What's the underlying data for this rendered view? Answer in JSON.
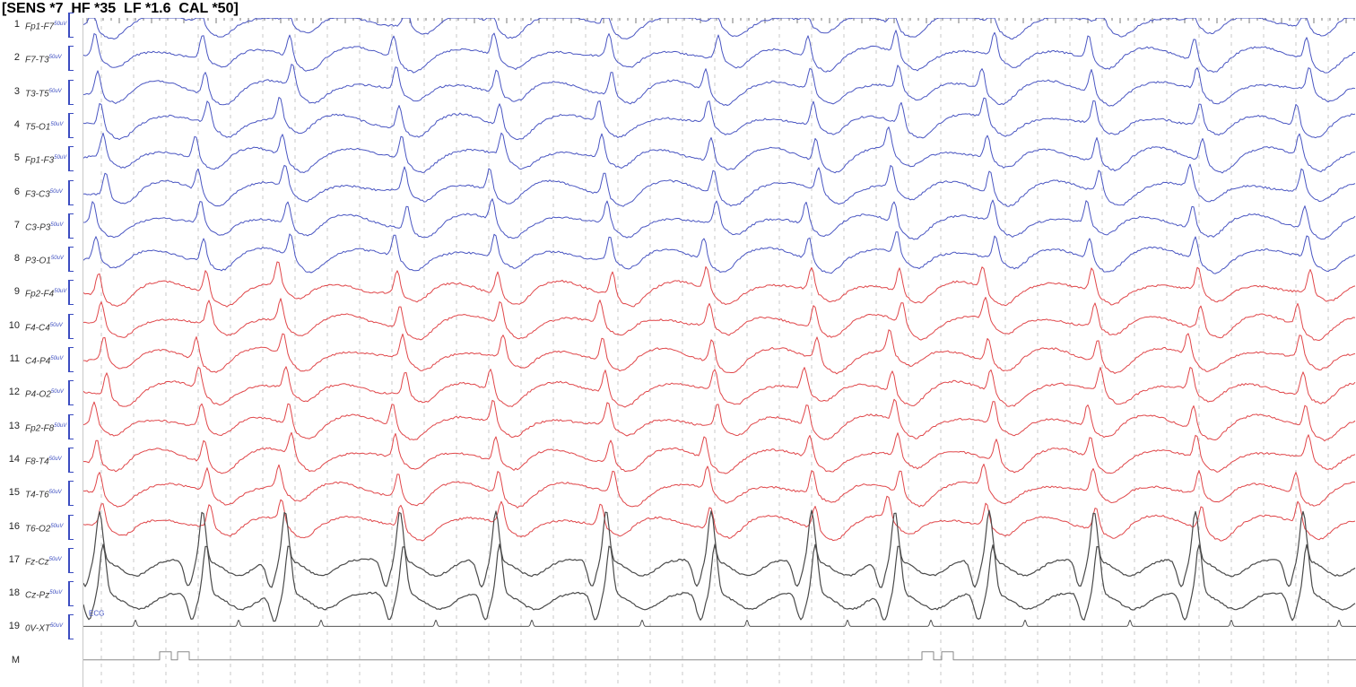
{
  "settings": {
    "text": "[SENS *7  HF *35  LF *1.6  CAL *50]"
  },
  "channels": [
    {
      "num": "1",
      "name": "Fp1-F7",
      "unit": "50uV",
      "group": "left"
    },
    {
      "num": "2",
      "name": "F7-T3",
      "unit": "50uV",
      "group": "left"
    },
    {
      "num": "3",
      "name": "T3-T5",
      "unit": "50uV",
      "group": "left"
    },
    {
      "num": "4",
      "name": "T5-O1",
      "unit": "50uV",
      "group": "left"
    },
    {
      "num": "5",
      "name": "Fp1-F3",
      "unit": "50uV",
      "group": "left"
    },
    {
      "num": "6",
      "name": "F3-C3",
      "unit": "50uV",
      "group": "left"
    },
    {
      "num": "7",
      "name": "C3-P3",
      "unit": "50uV",
      "group": "left"
    },
    {
      "num": "8",
      "name": "P3-O1",
      "unit": "50uV",
      "group": "left"
    },
    {
      "num": "9",
      "name": "Fp2-F4",
      "unit": "50uV",
      "group": "right"
    },
    {
      "num": "10",
      "name": "F4-C4",
      "unit": "50uV",
      "group": "right"
    },
    {
      "num": "11",
      "name": "C4-P4",
      "unit": "50uV",
      "group": "right"
    },
    {
      "num": "12",
      "name": "P4-O2",
      "unit": "50uV",
      "group": "right"
    },
    {
      "num": "13",
      "name": "Fp2-F8",
      "unit": "50uV",
      "group": "right"
    },
    {
      "num": "14",
      "name": "F8-T4",
      "unit": "50uV",
      "group": "right"
    },
    {
      "num": "15",
      "name": "T4-T6",
      "unit": "50uV",
      "group": "right"
    },
    {
      "num": "16",
      "name": "T6-O2",
      "unit": "50uV",
      "group": "right"
    },
    {
      "num": "17",
      "name": "Fz-Cz",
      "unit": "50uV",
      "group": "mid"
    },
    {
      "num": "18",
      "name": "Cz-Pz",
      "unit": "50uV",
      "group": "mid"
    },
    {
      "num": "19",
      "name": "0V-XT",
      "unit": "50uV",
      "group": "ecg"
    },
    {
      "num": "M",
      "name": "",
      "unit": "",
      "group": "marker"
    }
  ],
  "ecg_label": "ECG",
  "colors": {
    "left": "#4a56c2",
    "right": "#e0474a",
    "mid": "#4a4a4a",
    "ecg": "#555555",
    "marker": "#8a8a8a",
    "grid": "#c9c9c9",
    "cal": "#3b4cc0"
  },
  "timeline": {
    "complex_times": [
      18,
      133,
      225,
      353,
      460,
      583,
      700,
      812,
      905,
      1010,
      1127,
      1240,
      1360
    ],
    "marker_pulses": [
      [
        85,
        98
      ],
      [
        105,
        118
      ],
      [
        935,
        948
      ],
      [
        957,
        970
      ]
    ]
  }
}
